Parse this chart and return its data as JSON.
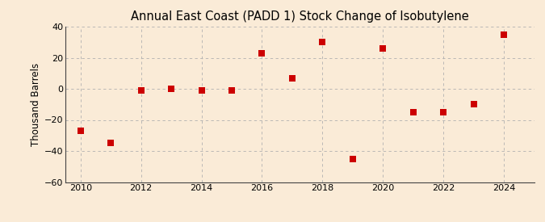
{
  "title": "Annual East Coast (PADD 1) Stock Change of Isobutylene",
  "ylabel": "Thousand Barrels",
  "background_color": "#faebd7",
  "marker_color": "#cc0000",
  "years": [
    2010,
    2011,
    2012,
    2013,
    2014,
    2015,
    2016,
    2017,
    2018,
    2019,
    2020,
    2021,
    2022,
    2023,
    2024
  ],
  "values": [
    -27,
    -35,
    -1,
    0,
    -1,
    -1,
    23,
    7,
    30,
    -45,
    26,
    -15,
    -15,
    -10,
    35
  ],
  "ylim": [
    -60,
    40
  ],
  "yticks": [
    -60,
    -40,
    -20,
    0,
    20,
    40
  ],
  "xlim": [
    2009.5,
    2025.0
  ],
  "xticks": [
    2010,
    2012,
    2014,
    2016,
    2018,
    2020,
    2022,
    2024
  ],
  "title_fontsize": 10.5,
  "label_fontsize": 8.5,
  "tick_fontsize": 8,
  "source_fontsize": 7.5,
  "marker_size": 28
}
